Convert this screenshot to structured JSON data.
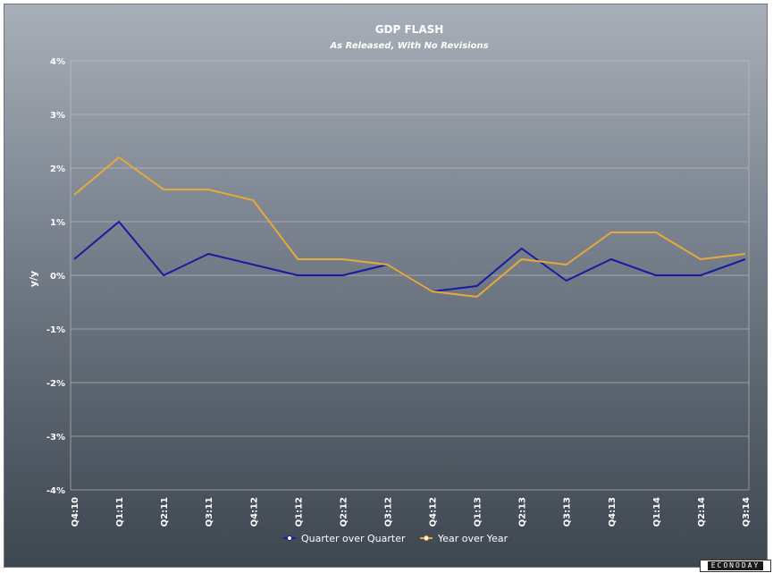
{
  "chart_data": {
    "type": "line",
    "title": "GDP FLASH",
    "subtitle": "As Released, With No Revisions",
    "xlabel": "",
    "ylabel": "y/y",
    "ylim": [
      -4,
      4
    ],
    "yticks": [
      "4%",
      "3%",
      "2%",
      "1%",
      "0%",
      "-1%",
      "-2%",
      "-3%",
      "-4%"
    ],
    "ytick_values": [
      4,
      3,
      2,
      1,
      0,
      -1,
      -2,
      -3,
      -4
    ],
    "categories": [
      "Q4:10",
      "Q1:11",
      "Q2:11",
      "Q3:11",
      "Q4:12",
      "Q1:12",
      "Q2:12",
      "Q3:12",
      "Q4:12",
      "Q1:13",
      "Q2:13",
      "Q3:13",
      "Q4:13",
      "Q1:14",
      "Q2:14",
      "Q3:14"
    ],
    "series": [
      {
        "name": "Quarter over Quarter",
        "color": "#1a1aa0",
        "values": [
          0.3,
          1.0,
          0.0,
          0.4,
          0.2,
          0.0,
          0.0,
          0.2,
          -0.3,
          -0.2,
          0.5,
          -0.1,
          0.3,
          0.0,
          0.0,
          0.3
        ]
      },
      {
        "name": "Year over Year",
        "color": "#e8a93a",
        "values": [
          1.5,
          2.2,
          1.6,
          1.6,
          1.4,
          0.3,
          0.3,
          0.2,
          -0.3,
          -0.4,
          0.3,
          0.2,
          0.8,
          0.8,
          0.3,
          0.4
        ]
      }
    ],
    "grid": true,
    "legend_position": "bottom"
  },
  "logo": {
    "text": "ECONODAY"
  }
}
